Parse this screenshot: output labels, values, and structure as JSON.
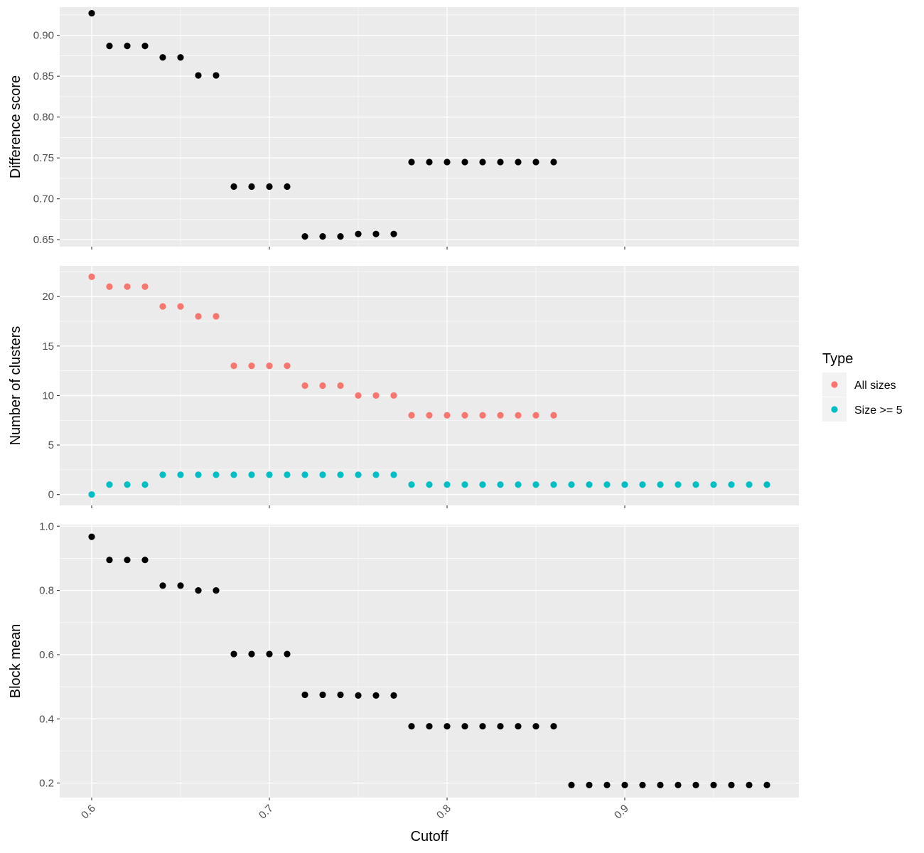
{
  "chart_data": {
    "type": "scatter",
    "xlabel": "Cutoff",
    "x_ticks": [
      0.6,
      0.7,
      0.8,
      0.9
    ],
    "xlim": [
      0.582,
      0.998
    ],
    "grid": true,
    "legend": {
      "title": "Type",
      "placement": "right",
      "entries": [
        {
          "label": "All sizes",
          "color": "#F8766D"
        },
        {
          "label": "Size >= 5",
          "color": "#00BFC4"
        }
      ]
    },
    "panels": [
      {
        "id": "difference",
        "ylabel": "Difference score",
        "ylim": [
          0.6415,
          0.9345
        ],
        "y_ticks": [
          0.65,
          0.7,
          0.75,
          0.8,
          0.85,
          0.9
        ],
        "series": [
          {
            "color": "#000000",
            "x": [
              0.6,
              0.61,
              0.62,
              0.63,
              0.64,
              0.65,
              0.66,
              0.67,
              0.68,
              0.69,
              0.7,
              0.71,
              0.72,
              0.73,
              0.74,
              0.75,
              0.76,
              0.77,
              0.78,
              0.79,
              0.8,
              0.81,
              0.82,
              0.83,
              0.84,
              0.85,
              0.86
            ],
            "y": [
              0.927,
              0.887,
              0.887,
              0.887,
              0.873,
              0.873,
              0.851,
              0.851,
              0.715,
              0.715,
              0.715,
              0.715,
              0.654,
              0.654,
              0.654,
              0.657,
              0.657,
              0.657,
              0.745,
              0.745,
              0.745,
              0.745,
              0.745,
              0.745,
              0.745,
              0.745,
              0.745
            ]
          }
        ]
      },
      {
        "id": "clusters",
        "ylabel": "Number of clusters",
        "ylim": [
          -1.1,
          23.1
        ],
        "y_ticks": [
          0,
          5,
          10,
          15,
          20
        ],
        "series": [
          {
            "name": "All sizes",
            "color": "#F8766D",
            "x": [
              0.6,
              0.61,
              0.62,
              0.63,
              0.64,
              0.65,
              0.66,
              0.67,
              0.68,
              0.69,
              0.7,
              0.71,
              0.72,
              0.73,
              0.74,
              0.75,
              0.76,
              0.77,
              0.78,
              0.79,
              0.8,
              0.81,
              0.82,
              0.83,
              0.84,
              0.85,
              0.86
            ],
            "y": [
              22,
              21,
              21,
              21,
              19,
              19,
              18,
              18,
              13,
              13,
              13,
              13,
              11,
              11,
              11,
              10,
              10,
              10,
              8,
              8,
              8,
              8,
              8,
              8,
              8,
              8,
              8
            ]
          },
          {
            "name": "Size >= 5",
            "color": "#00BFC4",
            "x": [
              0.6,
              0.61,
              0.62,
              0.63,
              0.64,
              0.65,
              0.66,
              0.67,
              0.68,
              0.69,
              0.7,
              0.71,
              0.72,
              0.73,
              0.74,
              0.75,
              0.76,
              0.77,
              0.78,
              0.79,
              0.8,
              0.81,
              0.82,
              0.83,
              0.84,
              0.85,
              0.86,
              0.87,
              0.88,
              0.89,
              0.9,
              0.91,
              0.92,
              0.93,
              0.94,
              0.95,
              0.96,
              0.97,
              0.98
            ],
            "y": [
              0,
              1,
              1,
              1,
              2,
              2,
              2,
              2,
              2,
              2,
              2,
              2,
              2,
              2,
              2,
              2,
              2,
              2,
              1,
              1,
              1,
              1,
              1,
              1,
              1,
              1,
              1,
              1,
              1,
              1,
              1,
              1,
              1,
              1,
              1,
              1,
              1,
              1,
              1
            ]
          }
        ]
      },
      {
        "id": "block",
        "ylabel": "Block mean",
        "ylim": [
          0.155,
          1.005
        ],
        "y_ticks": [
          0.2,
          0.4,
          0.6,
          0.8,
          1.0
        ],
        "series": [
          {
            "color": "#000000",
            "x": [
              0.6,
              0.61,
              0.62,
              0.63,
              0.64,
              0.65,
              0.66,
              0.67,
              0.68,
              0.69,
              0.7,
              0.71,
              0.72,
              0.73,
              0.74,
              0.75,
              0.76,
              0.77,
              0.78,
              0.79,
              0.8,
              0.81,
              0.82,
              0.83,
              0.84,
              0.85,
              0.86,
              0.87,
              0.88,
              0.89,
              0.9,
              0.91,
              0.92,
              0.93,
              0.94,
              0.95,
              0.96,
              0.97,
              0.98
            ],
            "y": [
              0.967,
              0.895,
              0.895,
              0.895,
              0.815,
              0.815,
              0.8,
              0.8,
              0.602,
              0.602,
              0.602,
              0.602,
              0.475,
              0.475,
              0.475,
              0.473,
              0.473,
              0.473,
              0.377,
              0.377,
              0.377,
              0.377,
              0.377,
              0.377,
              0.377,
              0.377,
              0.377,
              0.194,
              0.194,
              0.194,
              0.194,
              0.194,
              0.194,
              0.194,
              0.194,
              0.194,
              0.194,
              0.194,
              0.194
            ]
          }
        ]
      }
    ]
  }
}
